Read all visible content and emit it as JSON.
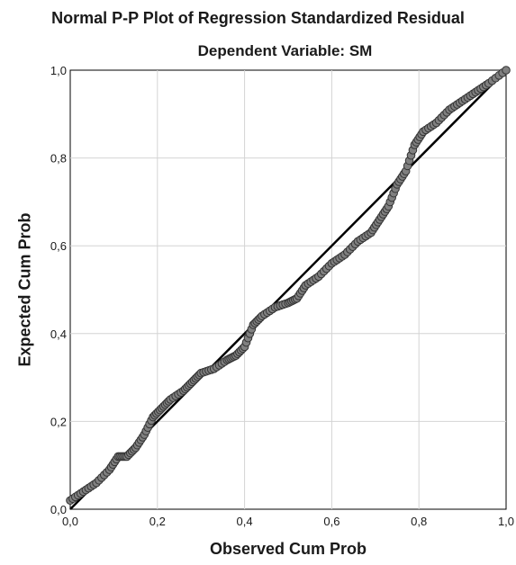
{
  "chart_data": {
    "type": "scatter",
    "title": "Normal P-P Plot of Regression Standardized Residual",
    "subtitle": "Dependent Variable: SM",
    "xlabel": "Observed Cum Prob",
    "ylabel": "Expected Cum Prob",
    "xlim": [
      0,
      1
    ],
    "ylim": [
      0,
      1
    ],
    "x_ticks": [
      "0,0",
      "0,2",
      "0,4",
      "0,6",
      "0,8",
      "1,0"
    ],
    "y_ticks": [
      "0,0",
      "0,2",
      "0,4",
      "0,6",
      "0,8",
      "1,0"
    ],
    "grid": true,
    "reference_line": [
      [
        0,
        0
      ],
      [
        1,
        1
      ]
    ],
    "marker_color": "#808080",
    "curve_points": [
      [
        0.0,
        0.02
      ],
      [
        0.03,
        0.04
      ],
      [
        0.06,
        0.06
      ],
      [
        0.09,
        0.09
      ],
      [
        0.11,
        0.12
      ],
      [
        0.13,
        0.12
      ],
      [
        0.15,
        0.14
      ],
      [
        0.17,
        0.17
      ],
      [
        0.19,
        0.21
      ],
      [
        0.21,
        0.23
      ],
      [
        0.23,
        0.25
      ],
      [
        0.26,
        0.27
      ],
      [
        0.28,
        0.29
      ],
      [
        0.3,
        0.31
      ],
      [
        0.33,
        0.32
      ],
      [
        0.36,
        0.34
      ],
      [
        0.38,
        0.35
      ],
      [
        0.4,
        0.37
      ],
      [
        0.42,
        0.42
      ],
      [
        0.44,
        0.44
      ],
      [
        0.47,
        0.46
      ],
      [
        0.5,
        0.47
      ],
      [
        0.52,
        0.48
      ],
      [
        0.54,
        0.51
      ],
      [
        0.57,
        0.53
      ],
      [
        0.6,
        0.56
      ],
      [
        0.63,
        0.58
      ],
      [
        0.66,
        0.61
      ],
      [
        0.69,
        0.63
      ],
      [
        0.71,
        0.66
      ],
      [
        0.73,
        0.69
      ],
      [
        0.75,
        0.74
      ],
      [
        0.77,
        0.77
      ],
      [
        0.79,
        0.83
      ],
      [
        0.81,
        0.86
      ],
      [
        0.84,
        0.88
      ],
      [
        0.87,
        0.91
      ],
      [
        0.9,
        0.93
      ],
      [
        0.93,
        0.95
      ],
      [
        0.96,
        0.97
      ],
      [
        1.0,
        1.0
      ]
    ]
  }
}
